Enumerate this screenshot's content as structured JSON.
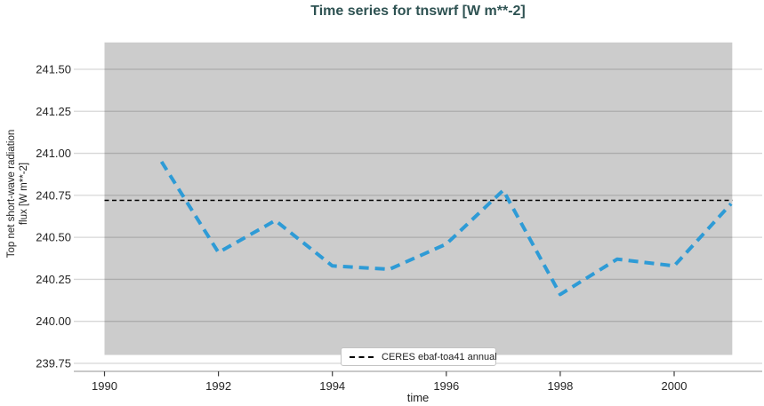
{
  "title": "Time series for tnswrf [W m**-2]",
  "axes": {
    "xlabel": "time",
    "ylabel_lines": [
      "Top net short-wave radiation",
      "flux [W m**-2]"
    ],
    "xticks": [
      1990,
      1992,
      1994,
      1996,
      1998,
      2000
    ],
    "yticks": [
      "241.50",
      "241.25",
      "241.00",
      "240.75",
      "240.50",
      "240.25",
      "240.00",
      "239.75"
    ]
  },
  "legend": {
    "position": "lower center",
    "entries": [
      {
        "label": "CERES ebaf-toa41 annual",
        "line_style": "dashed",
        "color": "#000000"
      }
    ]
  },
  "colors": {
    "title": "#2e5252",
    "series_blue": "#2e9bd6",
    "reference_black": "#000000",
    "gridline": "#d7d7d7",
    "axis_line": "#c9c9c9",
    "tick_mark": "#3c3c3c",
    "tick_label": "#262626",
    "shaded_band": "rgba(0,0,0,0.20)"
  },
  "chart_data": {
    "type": "line",
    "title": "Time series for tnswrf [W m**-2]",
    "xlabel": "time",
    "ylabel": "Top net short-wave radiation flux [W m**-2]",
    "x": [
      1991,
      1992,
      1993,
      1994,
      1995,
      1996,
      1997,
      1998,
      1999,
      2000,
      2001
    ],
    "series": [
      {
        "name": "tnswrf",
        "style": "dashed",
        "color": "#2e9bd6",
        "values": [
          240.95,
          240.41,
          240.6,
          240.33,
          240.31,
          240.46,
          240.78,
          240.16,
          240.37,
          240.33,
          240.7
        ]
      },
      {
        "name": "CERES ebaf-toa41 annual",
        "style": "dashed",
        "color": "#000000",
        "kind": "constant",
        "value": 240.72,
        "x_range": [
          1990,
          2001.02
        ]
      }
    ],
    "shaded_region": {
      "x": [
        1990,
        2001.02
      ],
      "y": [
        239.8,
        241.66
      ],
      "color": "rgba(0,0,0,0.20)"
    },
    "xlim": [
      1989.46,
      2001.54
    ],
    "ylim": [
      239.72,
      241.66
    ],
    "grid": true,
    "legend_position": "lower center"
  }
}
